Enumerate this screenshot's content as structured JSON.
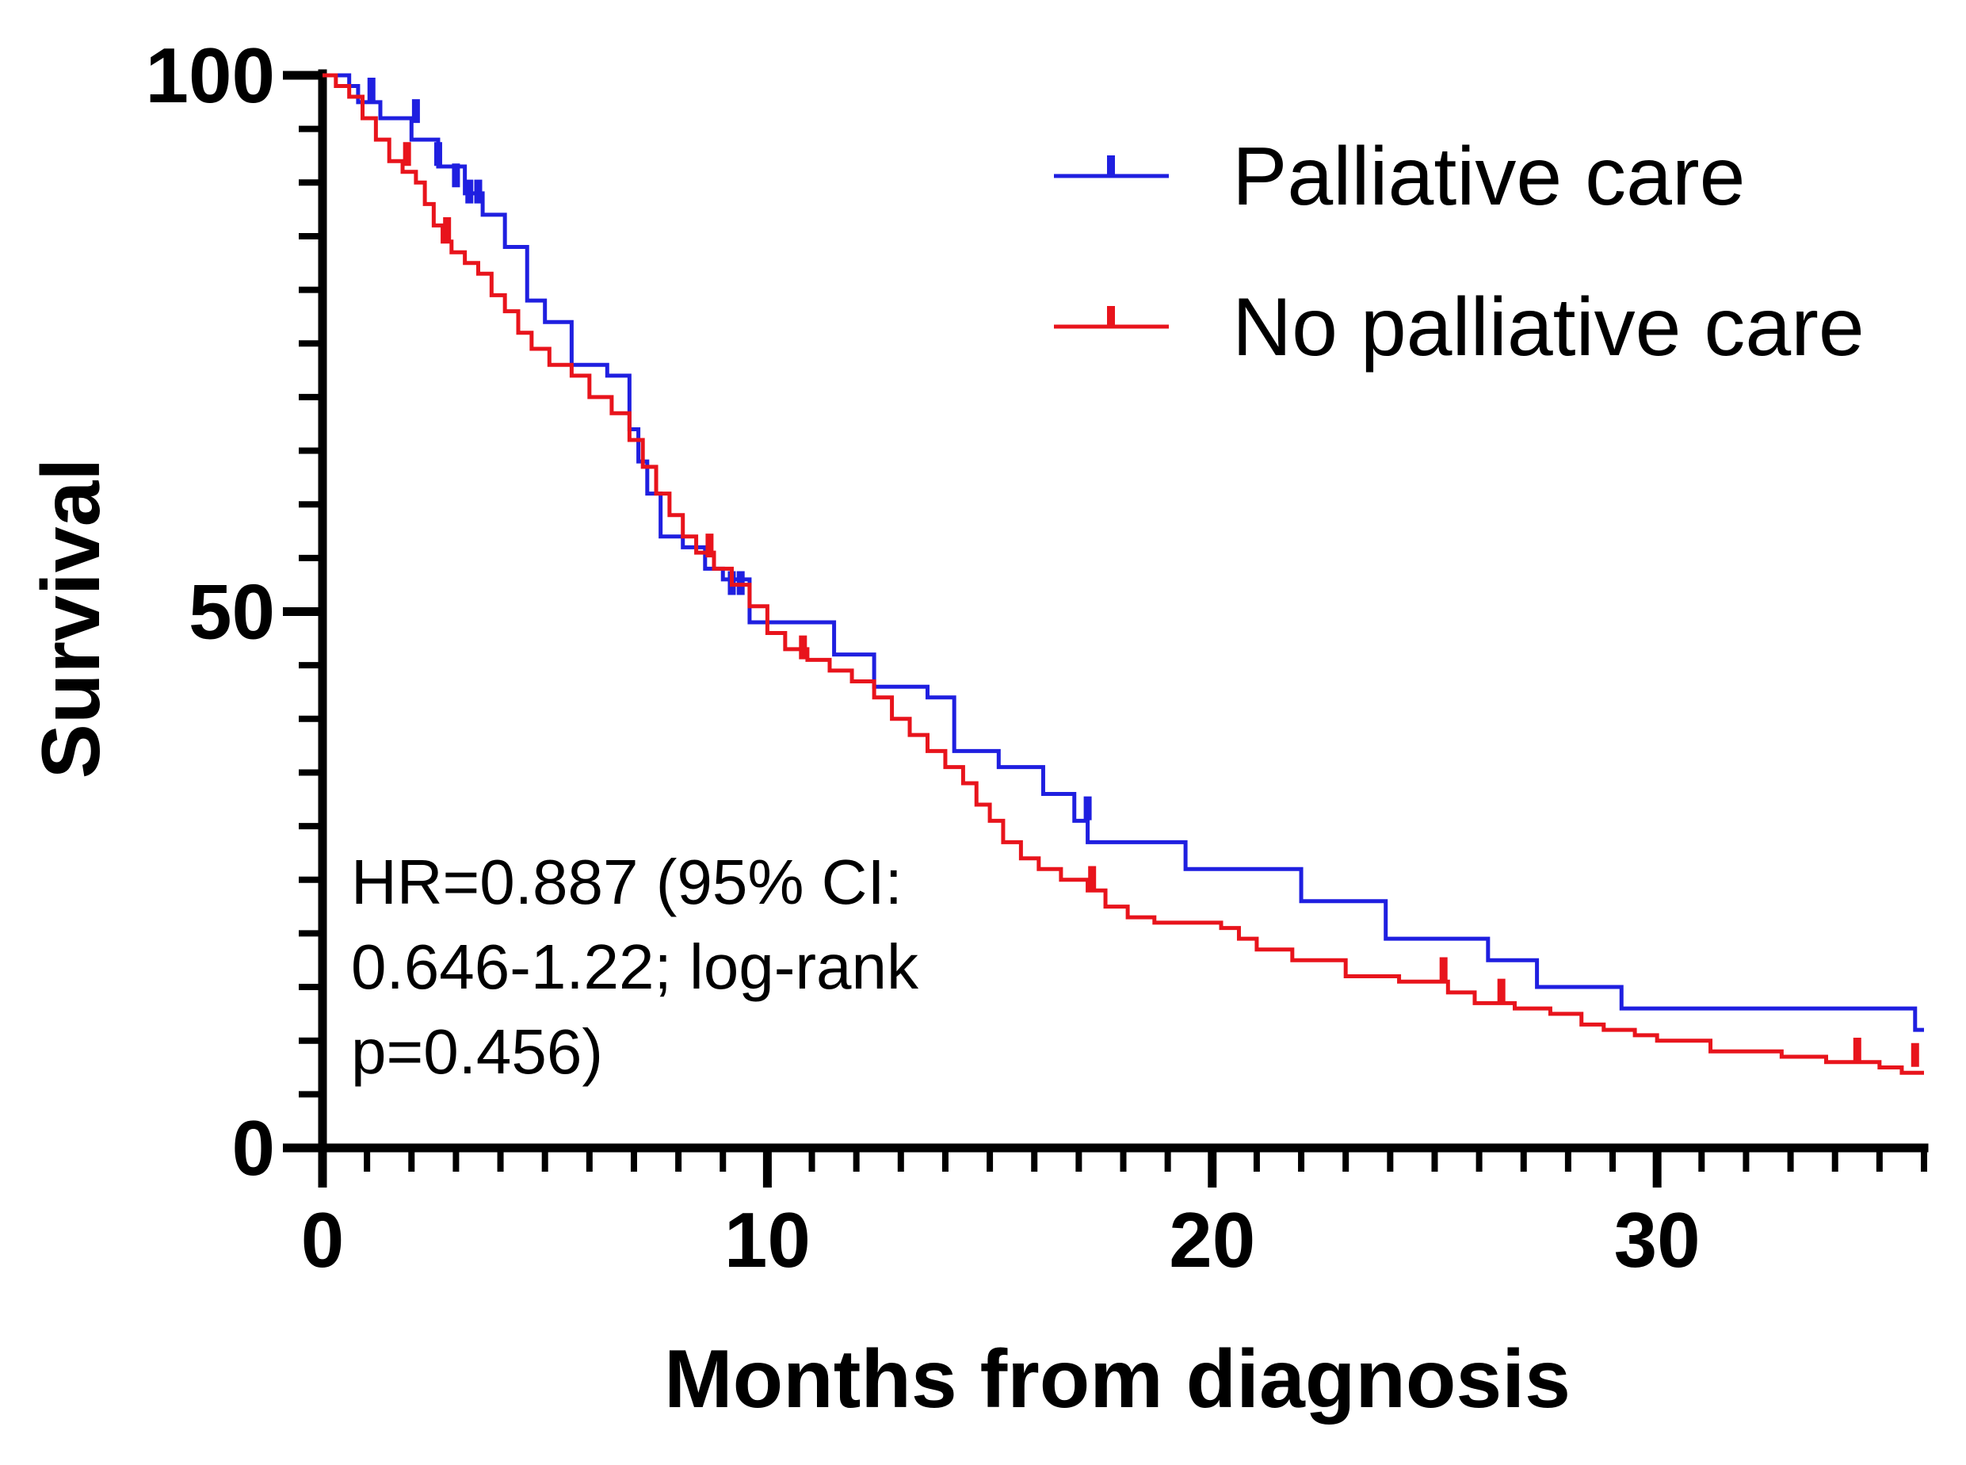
{
  "chart_data": {
    "type": "line",
    "subtype": "kaplan-meier",
    "title": "",
    "xlabel": "Months from diagnosis",
    "ylabel": "Survival",
    "xlim": [
      0,
      36
    ],
    "ylim": [
      0,
      100
    ],
    "x_ticks": [
      0,
      10,
      20,
      30
    ],
    "x_tick_labels": [
      "0",
      "10",
      "20",
      "30"
    ],
    "x_minor_tick_step": 1,
    "y_ticks": [
      0,
      50,
      100
    ],
    "y_tick_labels": [
      "0",
      "50",
      "100"
    ],
    "y_minor_tick_step": 5,
    "grid": false,
    "legend_position": "top-right",
    "annotation": [
      "HR=0.887 (95% CI:",
      "0.646-1.22; log-rank",
      "p=0.456)"
    ],
    "series": [
      {
        "name": "Palliative care",
        "color": "#1f1fe0",
        "steps": [
          [
            0,
            100
          ],
          [
            0.6,
            99
          ],
          [
            0.8,
            97.5
          ],
          [
            1.3,
            96
          ],
          [
            2,
            94
          ],
          [
            2.6,
            91.5
          ],
          [
            3.2,
            89
          ],
          [
            3.6,
            87
          ],
          [
            4.1,
            84
          ],
          [
            4.6,
            79
          ],
          [
            5,
            77
          ],
          [
            5.6,
            73
          ],
          [
            6.4,
            72
          ],
          [
            6.9,
            67
          ],
          [
            7.1,
            64
          ],
          [
            7.3,
            61
          ],
          [
            7.6,
            57
          ],
          [
            8.1,
            56
          ],
          [
            8.6,
            54
          ],
          [
            9,
            53
          ],
          [
            9.6,
            49
          ],
          [
            10.5,
            49
          ],
          [
            11.5,
            46
          ],
          [
            12.4,
            43
          ],
          [
            13.6,
            42
          ],
          [
            14.2,
            37
          ],
          [
            15.2,
            35.5
          ],
          [
            16.2,
            33
          ],
          [
            16.9,
            30.5
          ],
          [
            17.2,
            28.5
          ],
          [
            19.4,
            26
          ],
          [
            22,
            23
          ],
          [
            23.9,
            19.5
          ],
          [
            26.2,
            17.5
          ],
          [
            27.3,
            15
          ],
          [
            29.2,
            13
          ],
          [
            35.8,
            11
          ]
        ],
        "censored": [
          [
            1.1,
            98
          ],
          [
            2.1,
            96
          ],
          [
            2.6,
            92
          ],
          [
            3,
            90
          ],
          [
            3.3,
            88.5
          ],
          [
            3.5,
            88.5
          ],
          [
            9.2,
            52
          ],
          [
            9.4,
            52
          ],
          [
            17.2,
            31
          ]
        ]
      },
      {
        "name": "No palliative care",
        "color": "#e8141c",
        "steps": [
          [
            0,
            100
          ],
          [
            0.3,
            99
          ],
          [
            0.6,
            98
          ],
          [
            0.9,
            96
          ],
          [
            1.2,
            94
          ],
          [
            1.5,
            92
          ],
          [
            1.8,
            91
          ],
          [
            2.1,
            90
          ],
          [
            2.3,
            88
          ],
          [
            2.5,
            86
          ],
          [
            2.7,
            84.5
          ],
          [
            2.9,
            83.5
          ],
          [
            3.2,
            82.5
          ],
          [
            3.5,
            81.5
          ],
          [
            3.8,
            79.5
          ],
          [
            4.1,
            78
          ],
          [
            4.4,
            76
          ],
          [
            4.7,
            74.5
          ],
          [
            5.1,
            73
          ],
          [
            5.6,
            72
          ],
          [
            6,
            70
          ],
          [
            6.5,
            68.5
          ],
          [
            6.9,
            66
          ],
          [
            7.2,
            63.5
          ],
          [
            7.5,
            61
          ],
          [
            7.8,
            59
          ],
          [
            8.1,
            57
          ],
          [
            8.4,
            55.5
          ],
          [
            8.8,
            54
          ],
          [
            9.2,
            52.5
          ],
          [
            9.6,
            50.5
          ],
          [
            10,
            48
          ],
          [
            10.4,
            46.5
          ],
          [
            10.9,
            45.5
          ],
          [
            11.4,
            44.5
          ],
          [
            11.9,
            43.5
          ],
          [
            12.4,
            42
          ],
          [
            12.8,
            40
          ],
          [
            13.2,
            38.5
          ],
          [
            13.6,
            37
          ],
          [
            14,
            35.5
          ],
          [
            14.4,
            34
          ],
          [
            14.7,
            32
          ],
          [
            15,
            30.5
          ],
          [
            15.3,
            28.5
          ],
          [
            15.7,
            27
          ],
          [
            16.1,
            26
          ],
          [
            16.6,
            25
          ],
          [
            17.2,
            24
          ],
          [
            17.6,
            22.5
          ],
          [
            18.1,
            21.5
          ],
          [
            18.7,
            21
          ],
          [
            20.2,
            20.5
          ],
          [
            20.6,
            19.5
          ],
          [
            21,
            18.5
          ],
          [
            21.8,
            17.5
          ],
          [
            23,
            16
          ],
          [
            24.2,
            15.5
          ],
          [
            25.3,
            14.5
          ],
          [
            25.9,
            13.5
          ],
          [
            26.8,
            13
          ],
          [
            27.6,
            12.5
          ],
          [
            28.3,
            11.5
          ],
          [
            28.8,
            11
          ],
          [
            29.5,
            10.5
          ],
          [
            30,
            10
          ],
          [
            31.2,
            9
          ],
          [
            32.8,
            8.5
          ],
          [
            33.8,
            8
          ],
          [
            35,
            7.5
          ],
          [
            35.5,
            7
          ],
          [
            36,
            7
          ]
        ],
        "censored": [
          [
            1.9,
            92
          ],
          [
            2.8,
            85
          ],
          [
            8.7,
            55.5
          ],
          [
            10.8,
            46
          ],
          [
            17.3,
            24.5
          ],
          [
            25.2,
            16
          ],
          [
            26.5,
            14
          ],
          [
            34.5,
            8.5
          ],
          [
            35.8,
            8
          ]
        ]
      }
    ]
  }
}
